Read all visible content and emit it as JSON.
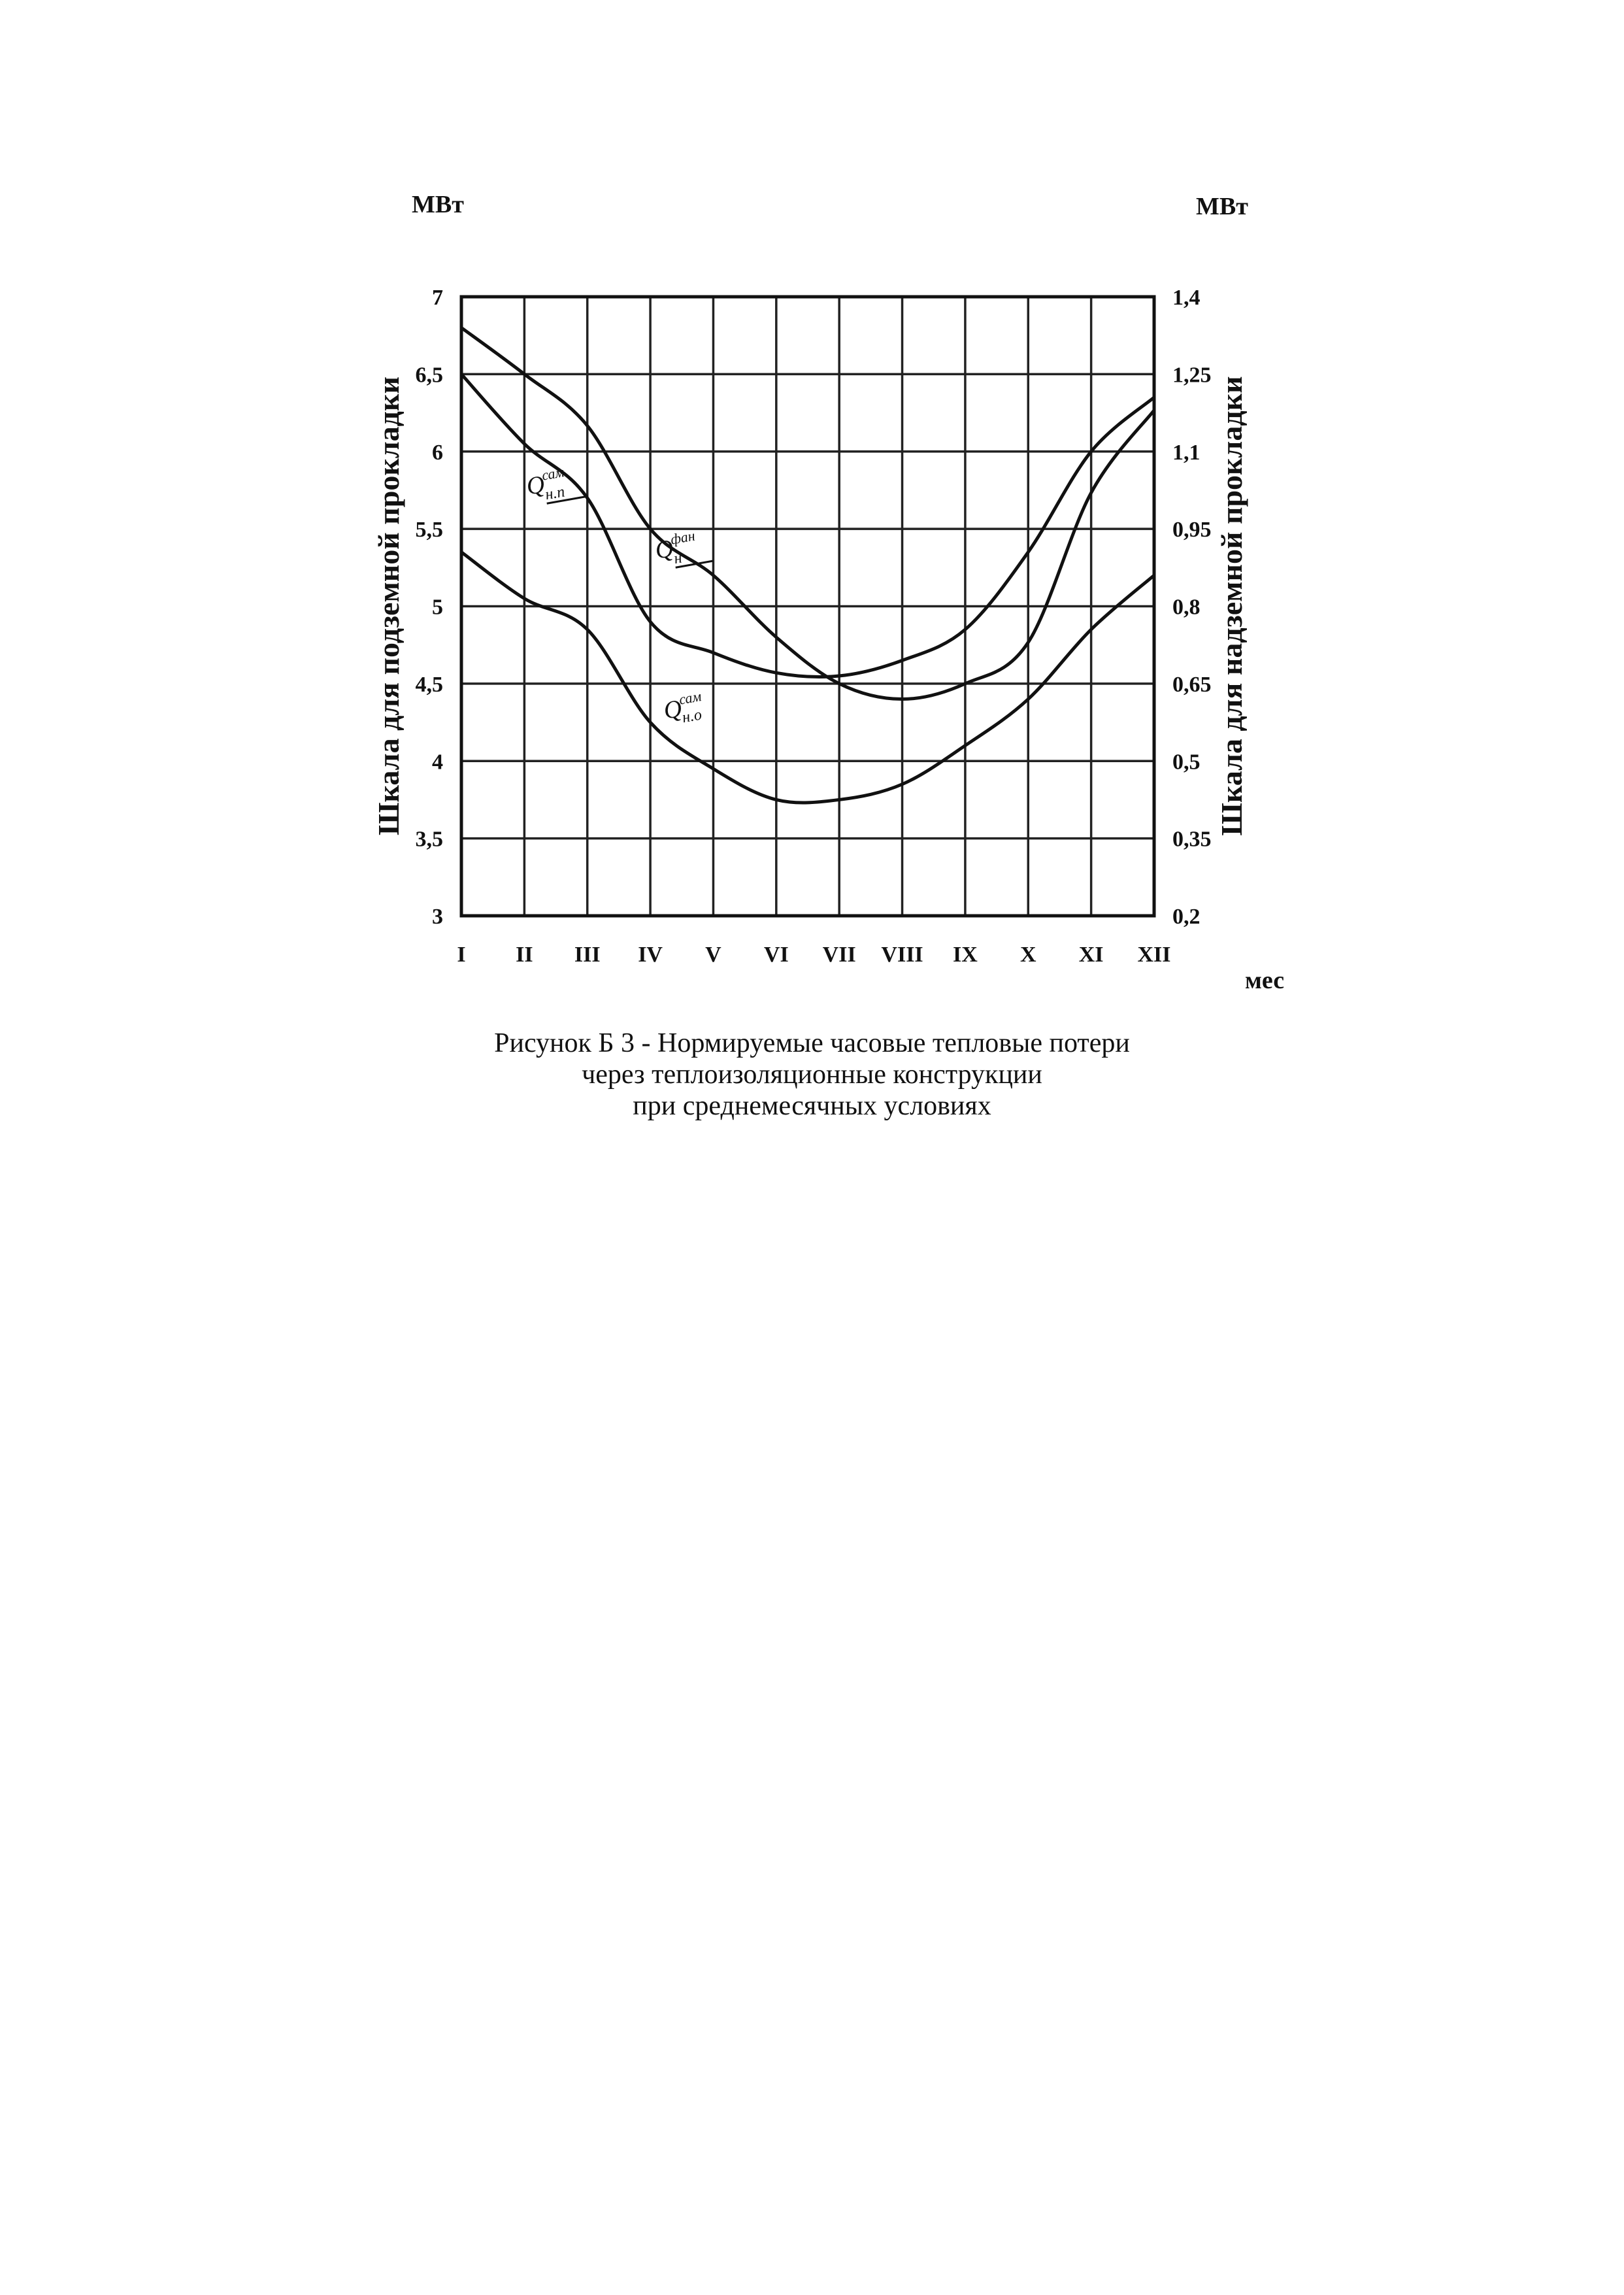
{
  "caption": {
    "line1": "Рисунок Б 3 - Нормируемые часовые тепловые потери",
    "line2": "через теплоизоляционные конструкции",
    "line3": "при среднемесячных условиях"
  },
  "chart_data": {
    "type": "line",
    "left_unit": "МВт",
    "right_unit": "МВт",
    "ylabel_left": "Шкала для подземной прокладки",
    "ylabel_right": "Шкала для надземной прокладки",
    "xlabel": "мес",
    "grid": true,
    "categories": [
      "I",
      "II",
      "III",
      "IV",
      "V",
      "VI",
      "VII",
      "VIII",
      "IX",
      "X",
      "XI",
      "XII"
    ],
    "ylim_left": [
      3,
      7
    ],
    "yticks_left": [
      "7",
      "6,5",
      "6",
      "5,5",
      "5",
      "4,5",
      "4",
      "3,5",
      "3"
    ],
    "ylim_right": [
      0.2,
      1.4
    ],
    "yticks_right": [
      "1,4",
      "1,25",
      "1,1",
      "0,95",
      "0,8",
      "0,65",
      "0,5",
      "0,35",
      "0,2"
    ],
    "series": [
      {
        "label_main": "Q",
        "label_sup": "сам",
        "label_sub": "н.п",
        "axis": "left",
        "values": [
          6.5,
          6.05,
          5.7,
          4.9,
          4.7,
          4.57,
          4.55,
          4.65,
          4.85,
          5.35,
          6.0,
          6.35
        ]
      },
      {
        "label_main": "Q",
        "label_sup": "сам",
        "label_sub": "н.о",
        "axis": "left",
        "values": [
          5.35,
          5.05,
          4.85,
          4.25,
          3.95,
          3.75,
          3.75,
          3.85,
          4.1,
          4.4,
          4.85,
          5.2
        ]
      },
      {
        "label_main": "Q",
        "label_sup": "фан",
        "label_sub": "н",
        "axis": "right",
        "values": [
          1.34,
          1.25,
          1.15,
          0.95,
          0.86,
          0.74,
          0.65,
          0.62,
          0.65,
          0.73,
          1.02,
          1.18
        ]
      }
    ]
  }
}
